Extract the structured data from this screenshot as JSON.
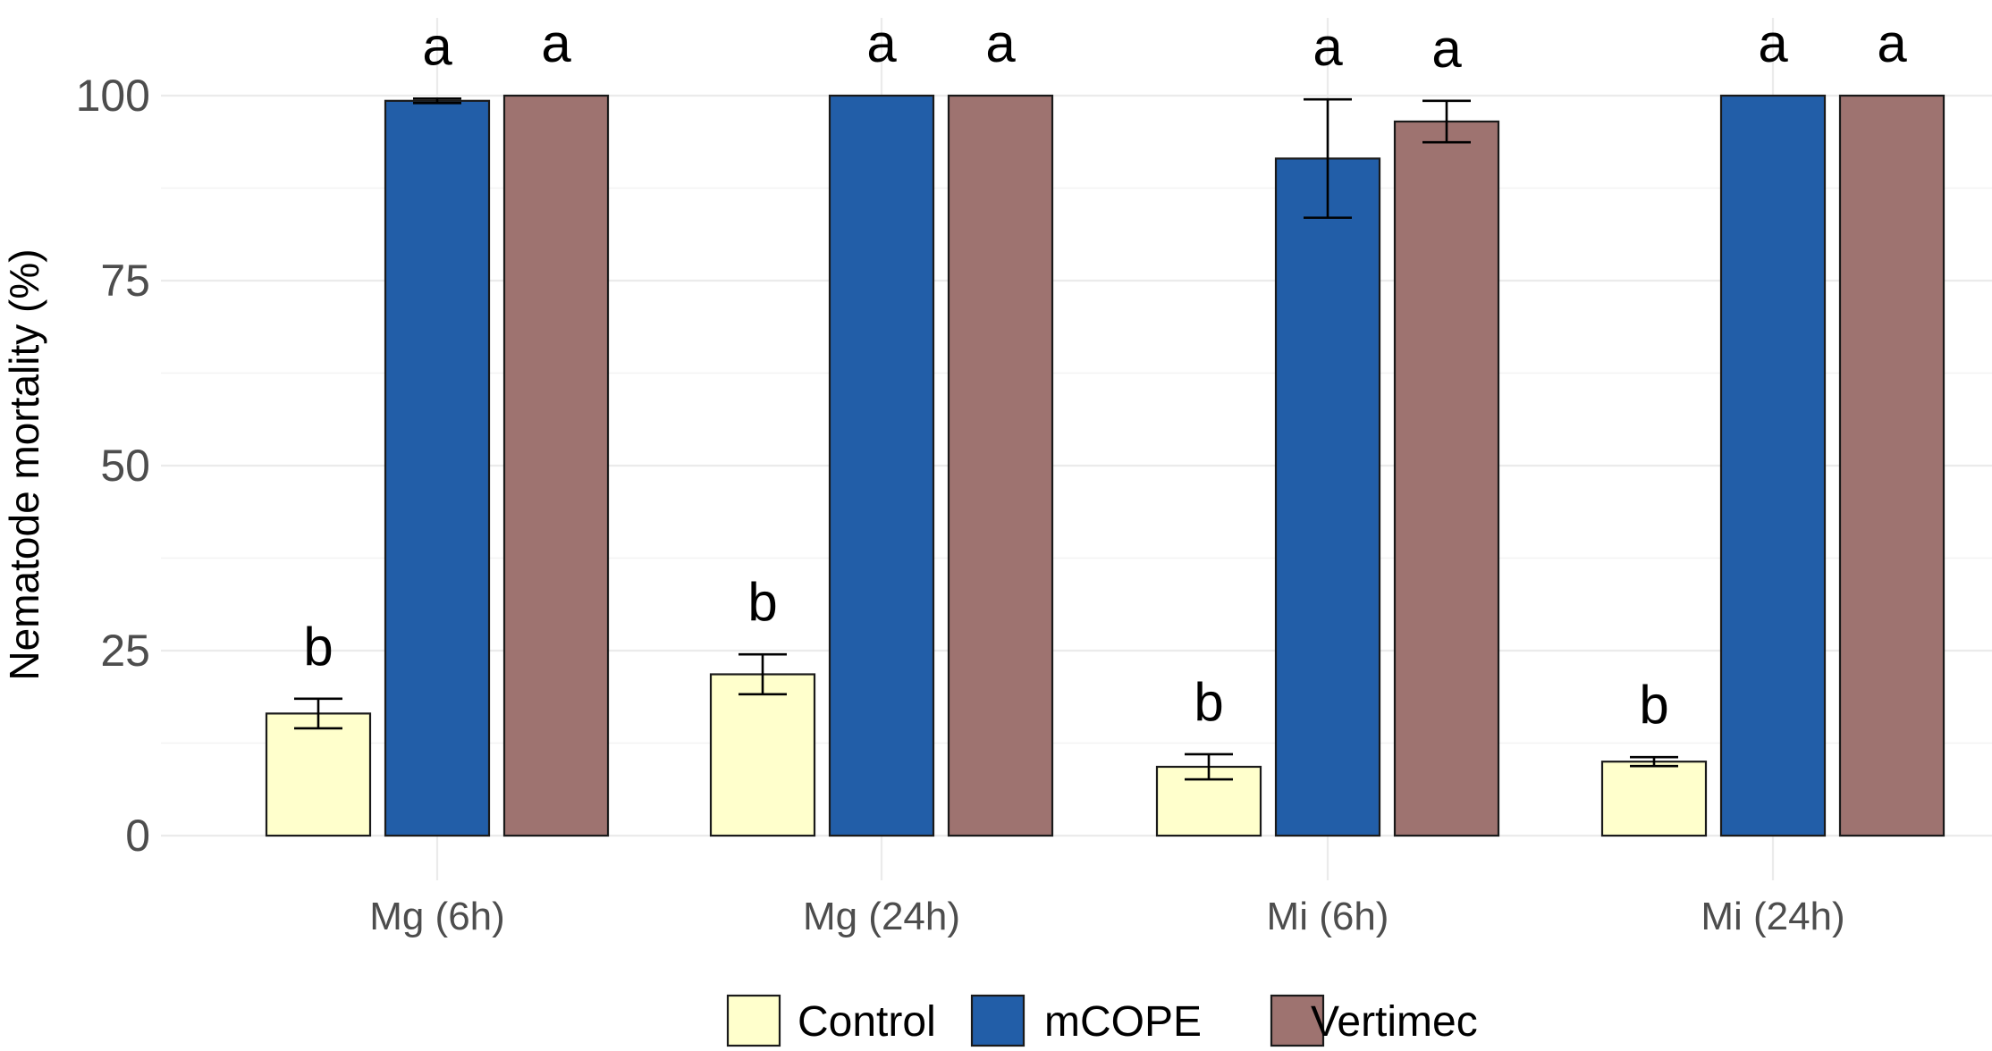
{
  "chart_data": {
    "type": "bar",
    "title": "",
    "xlabel": "",
    "ylabel": "Nematode mortality (%)",
    "ylim": [
      0,
      100
    ],
    "yticks": [
      0,
      25,
      50,
      75,
      100
    ],
    "yticks_labels": [
      "0",
      "25",
      "50",
      "75",
      "100"
    ],
    "grid": true,
    "legend_position": "bottom",
    "categories": [
      "Mg (6h)",
      "Mg (24h)",
      "Mi (6h)",
      "Mi (24h)"
    ],
    "series": [
      {
        "name": "Control",
        "color": "#FFFFCC",
        "values": [
          16.5,
          21.8,
          9.3,
          10.0
        ],
        "error": [
          2.0,
          2.7,
          1.7,
          0.6
        ],
        "significance": [
          "b",
          "b",
          "b",
          "b"
        ]
      },
      {
        "name": "mCOPE",
        "color": "#225EA8",
        "values": [
          99.3,
          100,
          91.5,
          100
        ],
        "error": [
          0.3,
          0,
          8.0,
          0
        ],
        "significance": [
          "a",
          "a",
          "a",
          "a"
        ]
      },
      {
        "name": "Vertimec",
        "color": "#9E7370",
        "values": [
          100,
          100,
          96.5,
          100
        ],
        "error": [
          0,
          0,
          2.8,
          0
        ],
        "significance": [
          "a",
          "a",
          "a",
          "a"
        ]
      }
    ]
  }
}
